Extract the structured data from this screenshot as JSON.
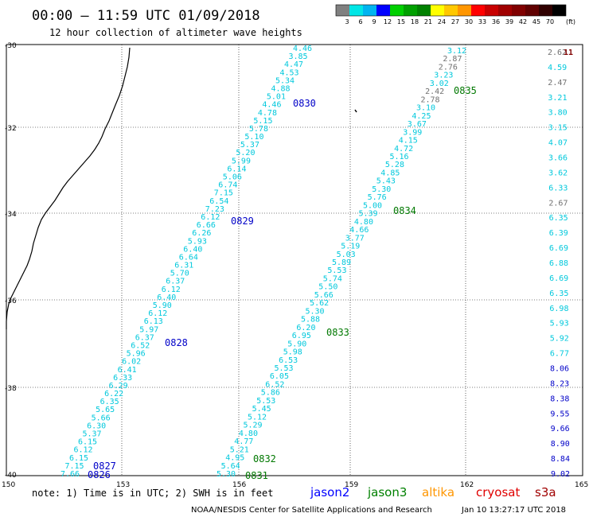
{
  "header": {
    "title": "00:00 – 11:59 UTC 01/09/2018",
    "subtitle": "12 hour collection of altimeter wave heights"
  },
  "legend": {
    "unit": "(ft)",
    "colors": [
      "#808080",
      "#00e6e6",
      "#00b4f0",
      "#0000ff",
      "#00d000",
      "#00a000",
      "#008000",
      "#ffff00",
      "#ffc800",
      "#ff9600",
      "#ff0000",
      "#c80000",
      "#a00000",
      "#800000",
      "#600000",
      "#300000",
      "#000000"
    ],
    "ticks": [
      "3",
      "6",
      "9",
      "12",
      "15",
      "18",
      "21",
      "24",
      "27",
      "30",
      "33",
      "36",
      "39",
      "42",
      "45",
      "70"
    ]
  },
  "axes": {
    "lat_labels": [
      "-30",
      "-32",
      "-34",
      "-36",
      "-38",
      "-40"
    ],
    "lon_labels": [
      "150",
      "153",
      "156",
      "159",
      "162",
      "165"
    ]
  },
  "tracks": [
    {
      "color": "#00c8dc",
      "values": [
        "4.46",
        "3.85",
        "4.47",
        "4.53",
        "5.34",
        "4.88",
        "5.01",
        "4.46",
        "4.78",
        "5.15",
        "5.78",
        "5.10",
        "5.37",
        "5.20",
        "5.99",
        "6.14",
        "5.06",
        "6.74",
        "7.15",
        "6.54",
        "7.23",
        "6.12",
        "6.66",
        "6.26",
        "5.93",
        "6.40",
        "6.64",
        "6.31",
        "5.70",
        "6.37",
        "6.12",
        "6.40",
        "5.90",
        "6.12",
        "6.13",
        "5.97",
        "6.37",
        "6.52",
        "5.96",
        "6.02",
        "6.41",
        "6.33",
        "6.29",
        "6.22",
        "6.35",
        "5.65",
        "5.66",
        "6.30",
        "5.37",
        "6.15",
        "6.12",
        "6.15",
        "7.15",
        "7.66"
      ]
    },
    {
      "color": "#00c8dc",
      "values": [
        "3.12",
        "2.87",
        "2.76",
        "3.23",
        "3.02",
        "2.42",
        "2.78",
        "3.10",
        "4.25",
        "3.67",
        "3.99",
        "4.15",
        "4.72",
        "5.16",
        "5.28",
        "4.85",
        "5.43",
        "5.30",
        "5.76",
        "5.00",
        "5.39",
        "4.80",
        "4.66",
        "3.77",
        "5.19",
        "5.03",
        "5.89",
        "5.53",
        "5.74",
        "5.50",
        "5.66",
        "5.62",
        "5.30",
        "5.88",
        "6.20",
        "6.95",
        "5.90",
        "5.98",
        "6.53",
        "5.53",
        "6.05",
        "6.52",
        "5.86",
        "5.53",
        "5.45",
        "5.12",
        "5.29",
        "4.80",
        "4.77",
        "5.21",
        "4.95",
        "5.64",
        "5.30"
      ]
    },
    {
      "color": "#00c8dc",
      "values": [
        "2.62",
        "4.59",
        "2.47",
        "3.21",
        "3.80",
        "3.15",
        "4.07",
        "3.66",
        "3.62",
        "6.33",
        "2.67",
        "6.35",
        "6.39",
        "6.69",
        "6.88",
        "6.69",
        "6.35",
        "6.98",
        "5.93",
        "5.92",
        "6.77",
        "8.06",
        "8.23",
        "8.38",
        "9.55",
        "9.66",
        "8.90",
        "8.84",
        "9.02"
      ]
    }
  ],
  "top_right_value": "11",
  "times": [
    {
      "text": "0830",
      "color": "#0000c8"
    },
    {
      "text": "0829",
      "color": "#0000c8"
    },
    {
      "text": "0828",
      "color": "#0000c8"
    },
    {
      "text": "0827",
      "color": "#0000c8"
    },
    {
      "text": "0826",
      "color": "#0000c8"
    },
    {
      "text": "0835",
      "color": "#007800"
    },
    {
      "text": "0834",
      "color": "#007800"
    },
    {
      "text": "0833",
      "color": "#007800"
    },
    {
      "text": "0832",
      "color": "#007800"
    },
    {
      "text": "0831",
      "color": "#007800"
    }
  ],
  "footer": {
    "note": "note: 1) Time is in UTC; 2) SWH is in feet",
    "satellites": [
      {
        "name": "jason2",
        "color": "#0000ff"
      },
      {
        "name": "jason3",
        "color": "#008000"
      },
      {
        "name": "altika",
        "color": "#ff9600"
      },
      {
        "name": "cryosat",
        "color": "#e00000"
      },
      {
        "name": "s3a",
        "color": "#a00000"
      }
    ],
    "credit": "NOAA/NESDIS Center for Satellite Applications and Research",
    "timestamp": "Jan 10 13:27:17 UTC 2018"
  }
}
